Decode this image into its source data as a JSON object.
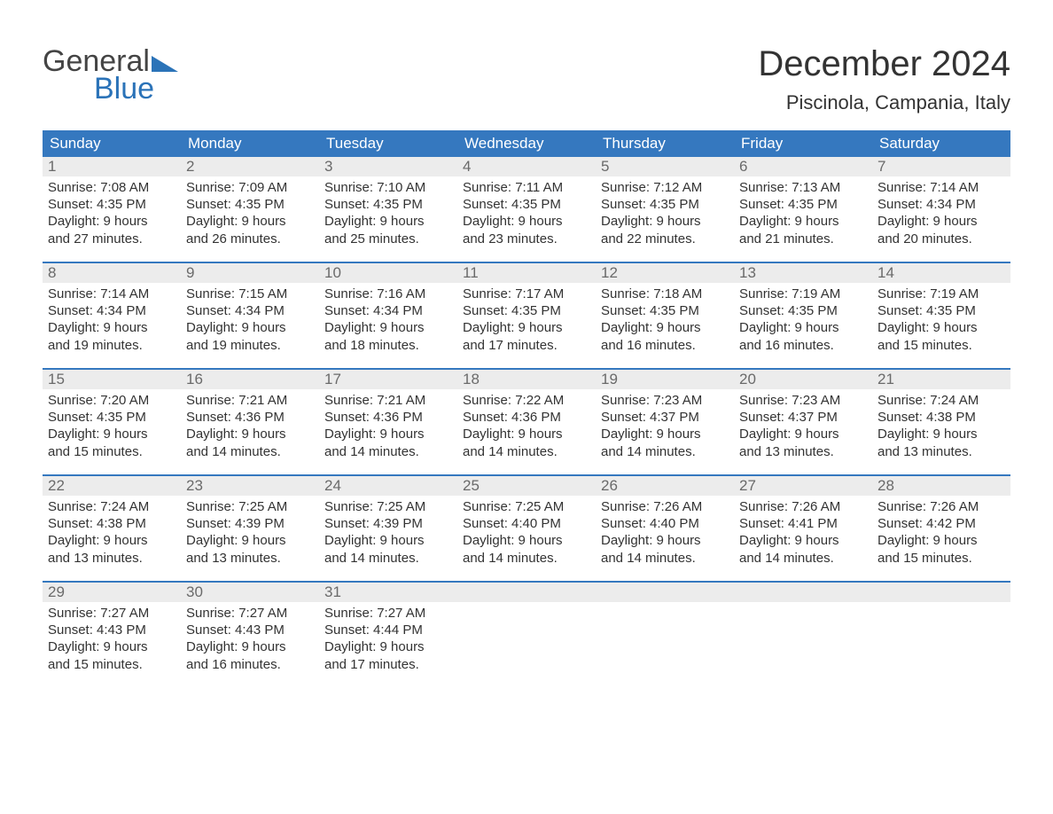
{
  "logo": {
    "word1": "General",
    "word2": "Blue",
    "tri_color": "#2b73b8",
    "text_gray": "#444444"
  },
  "title": "December 2024",
  "location": "Piscinola, Campania, Italy",
  "colors": {
    "header_bg": "#3578bf",
    "header_text": "#ffffff",
    "daynum_bg": "#ececec",
    "daynum_text": "#6a6a6a",
    "body_text": "#333333",
    "week_border": "#3578bf",
    "page_bg": "#ffffff"
  },
  "day_headers": [
    "Sunday",
    "Monday",
    "Tuesday",
    "Wednesday",
    "Thursday",
    "Friday",
    "Saturday"
  ],
  "weeks": [
    [
      {
        "n": "1",
        "sunrise": "Sunrise: 7:08 AM",
        "sunset": "Sunset: 4:35 PM",
        "d1": "Daylight: 9 hours",
        "d2": "and 27 minutes."
      },
      {
        "n": "2",
        "sunrise": "Sunrise: 7:09 AM",
        "sunset": "Sunset: 4:35 PM",
        "d1": "Daylight: 9 hours",
        "d2": "and 26 minutes."
      },
      {
        "n": "3",
        "sunrise": "Sunrise: 7:10 AM",
        "sunset": "Sunset: 4:35 PM",
        "d1": "Daylight: 9 hours",
        "d2": "and 25 minutes."
      },
      {
        "n": "4",
        "sunrise": "Sunrise: 7:11 AM",
        "sunset": "Sunset: 4:35 PM",
        "d1": "Daylight: 9 hours",
        "d2": "and 23 minutes."
      },
      {
        "n": "5",
        "sunrise": "Sunrise: 7:12 AM",
        "sunset": "Sunset: 4:35 PM",
        "d1": "Daylight: 9 hours",
        "d2": "and 22 minutes."
      },
      {
        "n": "6",
        "sunrise": "Sunrise: 7:13 AM",
        "sunset": "Sunset: 4:35 PM",
        "d1": "Daylight: 9 hours",
        "d2": "and 21 minutes."
      },
      {
        "n": "7",
        "sunrise": "Sunrise: 7:14 AM",
        "sunset": "Sunset: 4:34 PM",
        "d1": "Daylight: 9 hours",
        "d2": "and 20 minutes."
      }
    ],
    [
      {
        "n": "8",
        "sunrise": "Sunrise: 7:14 AM",
        "sunset": "Sunset: 4:34 PM",
        "d1": "Daylight: 9 hours",
        "d2": "and 19 minutes."
      },
      {
        "n": "9",
        "sunrise": "Sunrise: 7:15 AM",
        "sunset": "Sunset: 4:34 PM",
        "d1": "Daylight: 9 hours",
        "d2": "and 19 minutes."
      },
      {
        "n": "10",
        "sunrise": "Sunrise: 7:16 AM",
        "sunset": "Sunset: 4:34 PM",
        "d1": "Daylight: 9 hours",
        "d2": "and 18 minutes."
      },
      {
        "n": "11",
        "sunrise": "Sunrise: 7:17 AM",
        "sunset": "Sunset: 4:35 PM",
        "d1": "Daylight: 9 hours",
        "d2": "and 17 minutes."
      },
      {
        "n": "12",
        "sunrise": "Sunrise: 7:18 AM",
        "sunset": "Sunset: 4:35 PM",
        "d1": "Daylight: 9 hours",
        "d2": "and 16 minutes."
      },
      {
        "n": "13",
        "sunrise": "Sunrise: 7:19 AM",
        "sunset": "Sunset: 4:35 PM",
        "d1": "Daylight: 9 hours",
        "d2": "and 16 minutes."
      },
      {
        "n": "14",
        "sunrise": "Sunrise: 7:19 AM",
        "sunset": "Sunset: 4:35 PM",
        "d1": "Daylight: 9 hours",
        "d2": "and 15 minutes."
      }
    ],
    [
      {
        "n": "15",
        "sunrise": "Sunrise: 7:20 AM",
        "sunset": "Sunset: 4:35 PM",
        "d1": "Daylight: 9 hours",
        "d2": "and 15 minutes."
      },
      {
        "n": "16",
        "sunrise": "Sunrise: 7:21 AM",
        "sunset": "Sunset: 4:36 PM",
        "d1": "Daylight: 9 hours",
        "d2": "and 14 minutes."
      },
      {
        "n": "17",
        "sunrise": "Sunrise: 7:21 AM",
        "sunset": "Sunset: 4:36 PM",
        "d1": "Daylight: 9 hours",
        "d2": "and 14 minutes."
      },
      {
        "n": "18",
        "sunrise": "Sunrise: 7:22 AM",
        "sunset": "Sunset: 4:36 PM",
        "d1": "Daylight: 9 hours",
        "d2": "and 14 minutes."
      },
      {
        "n": "19",
        "sunrise": "Sunrise: 7:23 AM",
        "sunset": "Sunset: 4:37 PM",
        "d1": "Daylight: 9 hours",
        "d2": "and 14 minutes."
      },
      {
        "n": "20",
        "sunrise": "Sunrise: 7:23 AM",
        "sunset": "Sunset: 4:37 PM",
        "d1": "Daylight: 9 hours",
        "d2": "and 13 minutes."
      },
      {
        "n": "21",
        "sunrise": "Sunrise: 7:24 AM",
        "sunset": "Sunset: 4:38 PM",
        "d1": "Daylight: 9 hours",
        "d2": "and 13 minutes."
      }
    ],
    [
      {
        "n": "22",
        "sunrise": "Sunrise: 7:24 AM",
        "sunset": "Sunset: 4:38 PM",
        "d1": "Daylight: 9 hours",
        "d2": "and 13 minutes."
      },
      {
        "n": "23",
        "sunrise": "Sunrise: 7:25 AM",
        "sunset": "Sunset: 4:39 PM",
        "d1": "Daylight: 9 hours",
        "d2": "and 13 minutes."
      },
      {
        "n": "24",
        "sunrise": "Sunrise: 7:25 AM",
        "sunset": "Sunset: 4:39 PM",
        "d1": "Daylight: 9 hours",
        "d2": "and 14 minutes."
      },
      {
        "n": "25",
        "sunrise": "Sunrise: 7:25 AM",
        "sunset": "Sunset: 4:40 PM",
        "d1": "Daylight: 9 hours",
        "d2": "and 14 minutes."
      },
      {
        "n": "26",
        "sunrise": "Sunrise: 7:26 AM",
        "sunset": "Sunset: 4:40 PM",
        "d1": "Daylight: 9 hours",
        "d2": "and 14 minutes."
      },
      {
        "n": "27",
        "sunrise": "Sunrise: 7:26 AM",
        "sunset": "Sunset: 4:41 PM",
        "d1": "Daylight: 9 hours",
        "d2": "and 14 minutes."
      },
      {
        "n": "28",
        "sunrise": "Sunrise: 7:26 AM",
        "sunset": "Sunset: 4:42 PM",
        "d1": "Daylight: 9 hours",
        "d2": "and 15 minutes."
      }
    ],
    [
      {
        "n": "29",
        "sunrise": "Sunrise: 7:27 AM",
        "sunset": "Sunset: 4:43 PM",
        "d1": "Daylight: 9 hours",
        "d2": "and 15 minutes."
      },
      {
        "n": "30",
        "sunrise": "Sunrise: 7:27 AM",
        "sunset": "Sunset: 4:43 PM",
        "d1": "Daylight: 9 hours",
        "d2": "and 16 minutes."
      },
      {
        "n": "31",
        "sunrise": "Sunrise: 7:27 AM",
        "sunset": "Sunset: 4:44 PM",
        "d1": "Daylight: 9 hours",
        "d2": "and 17 minutes."
      },
      {
        "empty": true
      },
      {
        "empty": true
      },
      {
        "empty": true
      },
      {
        "empty": true
      }
    ]
  ]
}
